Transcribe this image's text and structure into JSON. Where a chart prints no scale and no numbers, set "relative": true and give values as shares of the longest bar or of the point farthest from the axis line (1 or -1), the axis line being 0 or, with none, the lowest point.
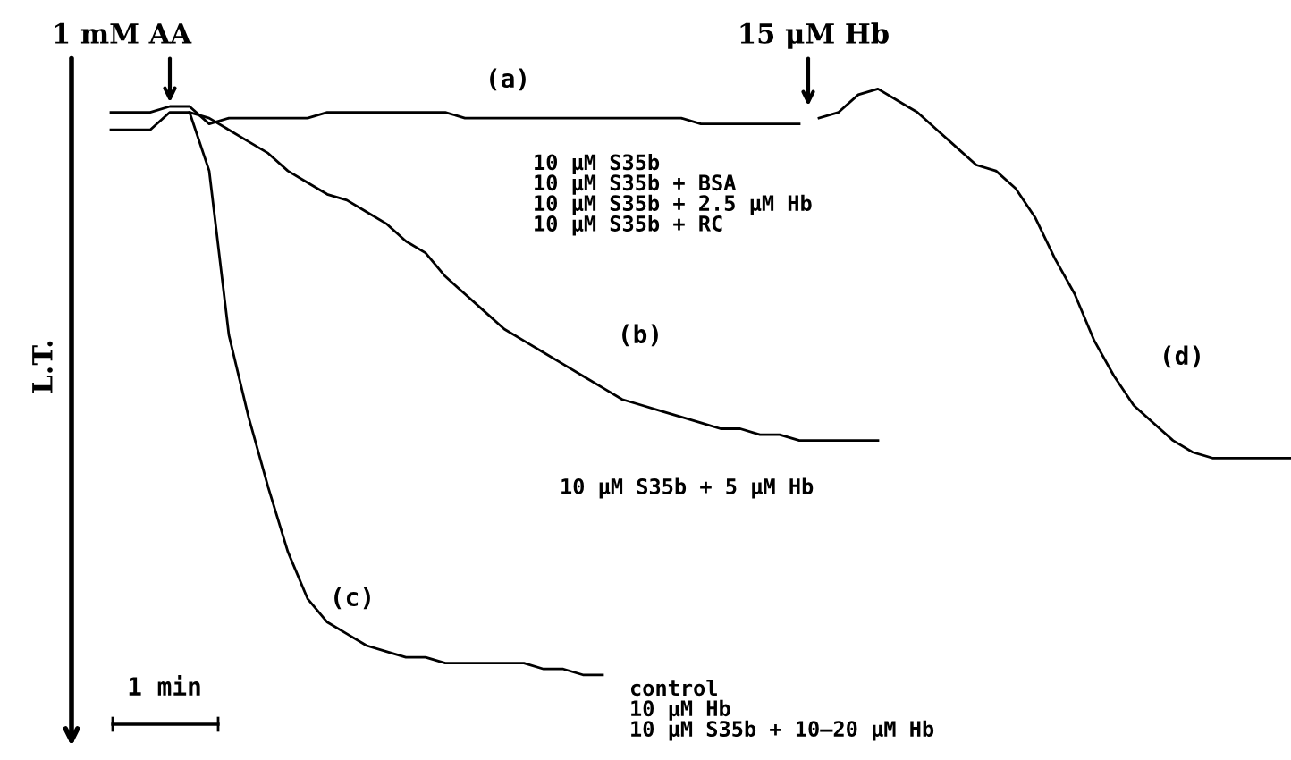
{
  "chart_data": {
    "type": "line",
    "relative": true,
    "ylabel": "L.T.",
    "categories": [
      null,
      null,
      null,
      null,
      null,
      null,
      null,
      null,
      null,
      null,
      null,
      null,
      null,
      null,
      null,
      null,
      null,
      null,
      null,
      null,
      null,
      null,
      null,
      null,
      null,
      null,
      null,
      null,
      null,
      null,
      null,
      null,
      null,
      null,
      null,
      null,
      null,
      null,
      null,
      null,
      null,
      null,
      null,
      null,
      null,
      null,
      null,
      null,
      null,
      null,
      null,
      null,
      null,
      null,
      null,
      null,
      null,
      null,
      null,
      null,
      null
    ],
    "series": [
      {
        "name": "(a)",
        "color": "#000000",
        "values": [
          0.96,
          0.96,
          0.96,
          0.97,
          0.97,
          0.94,
          0.95,
          0.95,
          0.95,
          0.95,
          0.95,
          0.96,
          0.96,
          0.96,
          0.96,
          0.96,
          0.96,
          0.96,
          0.95,
          0.95,
          0.95,
          0.95,
          0.95,
          0.95,
          0.95,
          0.95,
          0.95,
          0.95,
          0.95,
          0.95,
          0.94,
          0.94,
          0.94,
          0.94,
          0.94,
          0.94,
          null,
          null,
          null,
          null,
          null,
          null,
          null,
          null,
          null,
          null,
          null,
          null,
          null,
          null,
          null,
          null,
          null,
          null,
          null,
          null,
          null,
          null,
          null,
          null,
          null
        ]
      },
      {
        "name": "(b)",
        "color": "#000000",
        "values": [
          0.93,
          0.93,
          0.93,
          0.96,
          0.96,
          0.95,
          0.93,
          0.91,
          0.89,
          0.86,
          0.84,
          0.82,
          0.81,
          0.79,
          0.77,
          0.74,
          0.72,
          0.68,
          0.65,
          0.62,
          0.59,
          0.57,
          0.55,
          0.53,
          0.51,
          0.49,
          0.47,
          0.46,
          0.45,
          0.44,
          0.43,
          0.42,
          0.42,
          0.41,
          0.41,
          0.4,
          0.4,
          0.4,
          0.4,
          0.4,
          null,
          null,
          null,
          null,
          null,
          null,
          null,
          null,
          null,
          null,
          null,
          null,
          null,
          null,
          null,
          null,
          null,
          null,
          null,
          null,
          null
        ]
      },
      {
        "name": "(c)",
        "color": "#000000",
        "values": [
          null,
          null,
          null,
          null,
          0.96,
          0.86,
          0.58,
          0.44,
          0.32,
          0.21,
          0.13,
          0.09,
          0.07,
          0.05,
          0.04,
          0.03,
          0.03,
          0.02,
          0.02,
          0.02,
          0.02,
          0.02,
          0.01,
          0.01,
          0.0,
          0.0,
          null,
          null,
          null,
          null,
          null,
          null,
          null,
          null,
          null,
          null,
          null,
          null,
          null,
          null,
          null,
          null,
          null,
          null,
          null,
          null,
          null,
          null,
          null,
          null,
          null,
          null,
          null,
          null,
          null,
          null,
          null,
          null,
          null,
          null,
          null
        ]
      },
      {
        "name": "(d)",
        "color": "#000000",
        "values": [
          null,
          null,
          null,
          null,
          null,
          null,
          null,
          null,
          null,
          null,
          null,
          null,
          null,
          null,
          null,
          null,
          null,
          null,
          null,
          null,
          null,
          null,
          null,
          null,
          null,
          null,
          null,
          null,
          null,
          null,
          null,
          null,
          null,
          null,
          null,
          null,
          0.95,
          0.96,
          0.99,
          1.0,
          0.98,
          0.96,
          0.93,
          0.9,
          0.87,
          0.86,
          0.83,
          0.78,
          0.71,
          0.65,
          0.57,
          0.51,
          0.46,
          0.43,
          0.4,
          0.38,
          0.37,
          0.37,
          0.37,
          0.37,
          0.37
        ]
      }
    ],
    "annotations": [
      "1 mM AA",
      "15 μM Hb",
      "10 μM S35b\n10 μM S35b + BSA\n10 μM S35b + 2.5 μM Hb\n10 μM S35b + RC",
      "10 μM S35b + 5 μM Hb",
      "control\n10 μM Hb\n10 μM S35b + 10–20 μM Hb",
      "1 min"
    ],
    "legend": false
  }
}
